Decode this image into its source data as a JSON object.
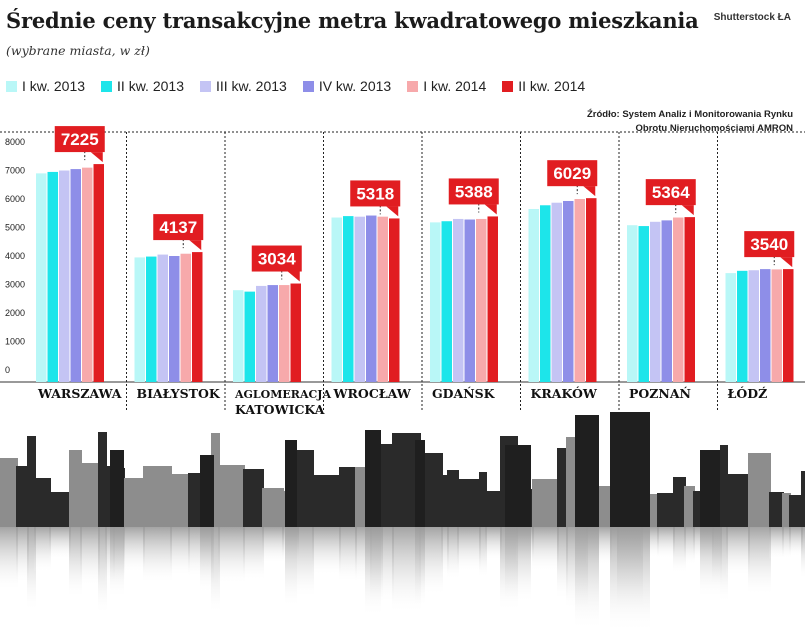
{
  "header": {
    "title": "Średnie ceny transakcyjne metra kwadratowego mieszkania",
    "subtitle": "(wybrane miasta, w zł)",
    "credit": "Shutterstock ŁA",
    "source_line1": "Źródło: System Analiz i Monitorowania Rynku",
    "source_line2": "Obrotu Nieruchomościami AMRON"
  },
  "colors": {
    "series": [
      "#b9f7f7",
      "#1de5ea",
      "#c4c4f4",
      "#8e8ee8",
      "#f7a9ab",
      "#e11d21"
    ],
    "callout": "#e11d21",
    "grid": "#333333"
  },
  "chart_data": {
    "type": "bar",
    "title": "Średnie ceny transakcyjne metra kwadratowego mieszkania",
    "subtitle": "(wybrane miasta, w zł)",
    "xlabel": "",
    "ylabel": "",
    "ylim": [
      0,
      8000
    ],
    "yticks": [
      "0",
      "1000",
      "2000",
      "3000",
      "4000",
      "5000",
      "6000",
      "7000",
      "8000"
    ],
    "legend_position": "top",
    "categories": [
      "Warszawa",
      "Białystok",
      "Aglomeracja Katowicka",
      "Wrocław",
      "Gdańsk",
      "Kraków",
      "Poznań",
      "Łódź"
    ],
    "category_labels": [
      [
        "WARSZAWA"
      ],
      [
        "BIAŁYSTOK"
      ],
      [
        "AGLOMERACJA",
        "KATOWICKA"
      ],
      [
        "WROCŁAW"
      ],
      [
        "GDAŃSK"
      ],
      [
        "KRAKÓW"
      ],
      [
        "POZNAŃ"
      ],
      [
        "ŁÓDŹ"
      ]
    ],
    "series": [
      {
        "name": "I kw. 2013",
        "values": [
          6900,
          3950,
          2800,
          5350,
          5180,
          5650,
          5080,
          3400
        ]
      },
      {
        "name": "II kw. 2013",
        "values": [
          6950,
          3980,
          2750,
          5400,
          5220,
          5780,
          5050,
          3480
        ]
      },
      {
        "name": "III kw. 2013",
        "values": [
          7000,
          4050,
          2950,
          5380,
          5300,
          5870,
          5200,
          3500
        ]
      },
      {
        "name": "IV kw. 2013",
        "values": [
          7050,
          4000,
          2980,
          5420,
          5280,
          5930,
          5250,
          3540
        ]
      },
      {
        "name": "I kw. 2014",
        "values": [
          7100,
          4080,
          2980,
          5380,
          5300,
          6000,
          5350,
          3530
        ]
      },
      {
        "name": "II kw. 2014",
        "values": [
          7225,
          4137,
          3034,
          5318,
          5388,
          6029,
          5364,
          3540
        ]
      }
    ],
    "callout_labels": [
      "7225",
      "4137",
      "3034",
      "5318",
      "5388",
      "6029",
      "5364",
      "3540"
    ],
    "grid": true
  }
}
